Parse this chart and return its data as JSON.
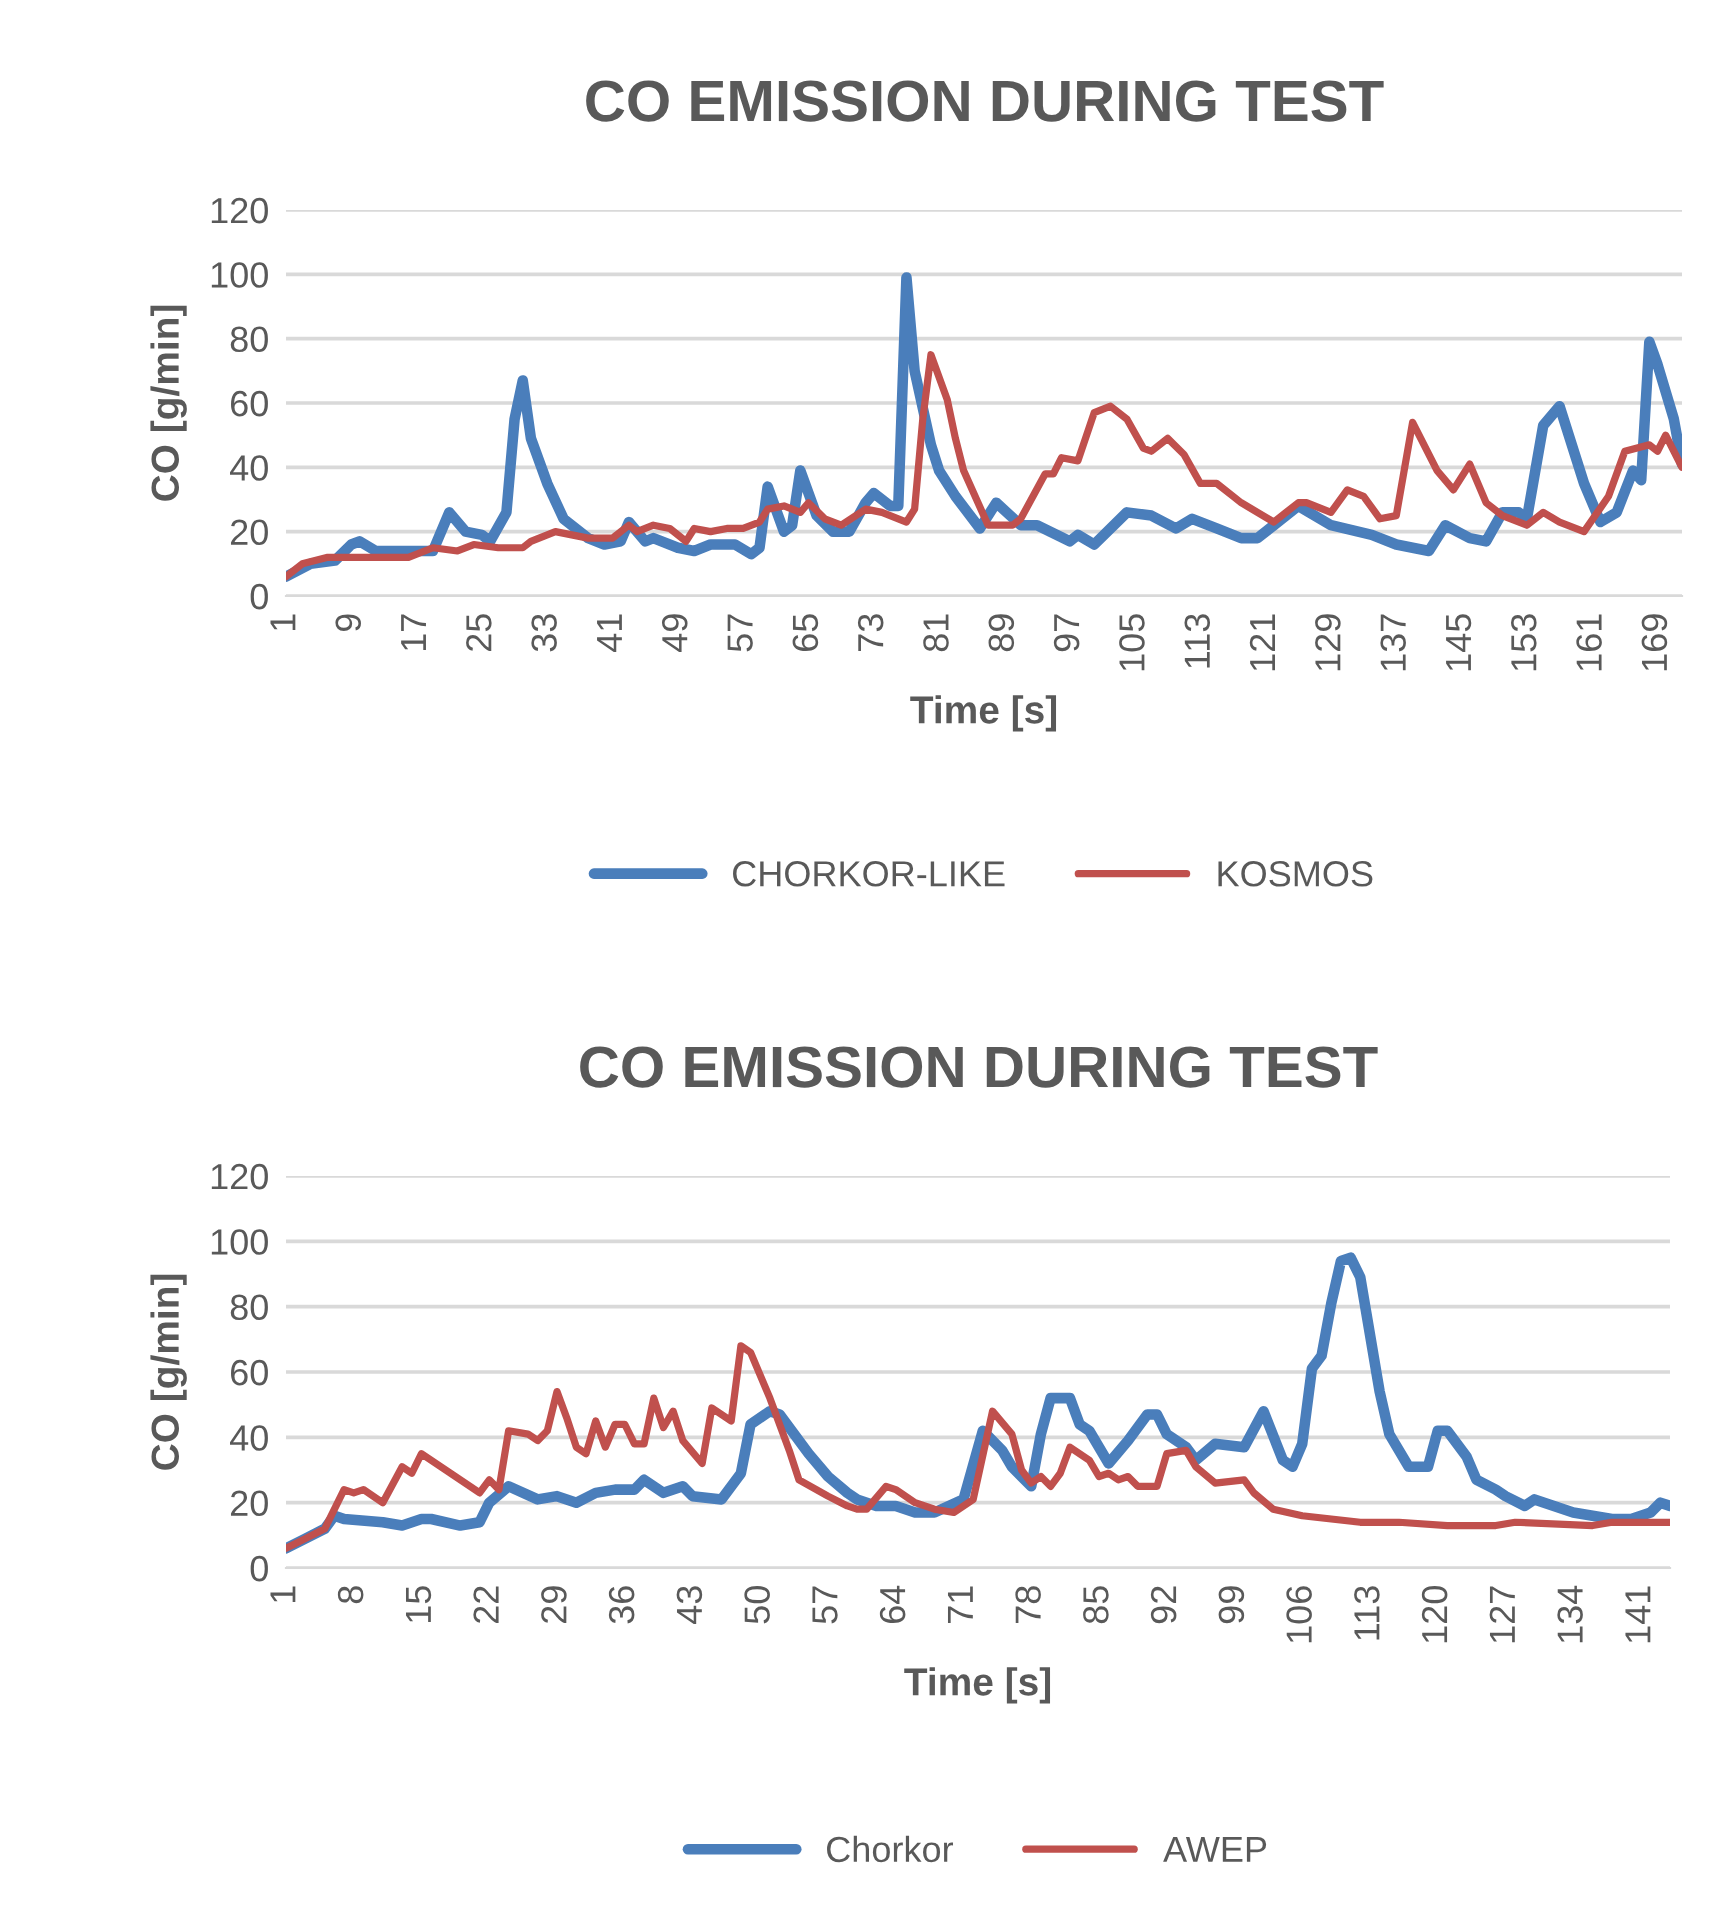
{
  "chart_data": [
    {
      "type": "line",
      "title": "CO EMISSION DURING TEST",
      "xlabel": "Time [s]",
      "ylabel": "CO [g/min]",
      "xlim": [
        1,
        172
      ],
      "xticks": [
        1,
        9,
        17,
        25,
        33,
        41,
        49,
        57,
        65,
        73,
        81,
        89,
        97,
        105,
        113,
        121,
        129,
        137,
        145,
        153,
        161,
        169
      ],
      "ylim": [
        0,
        120
      ],
      "yticks": [
        0,
        20,
        40,
        60,
        80,
        100,
        120
      ],
      "grid": "y",
      "legend": "bottom",
      "marker": "none",
      "line_style": "solid",
      "series": [
        {
          "name": "CHORKOR-LIKE",
          "color": "#4a7ebb",
          "x": [
            1,
            4,
            7,
            9,
            10,
            12,
            17,
            19,
            21,
            23,
            25,
            26,
            28,
            29,
            30,
            31,
            33,
            35,
            38,
            40,
            42,
            43,
            45,
            46,
            49,
            51,
            53,
            56,
            58,
            59,
            60,
            62,
            63,
            64,
            66,
            68,
            70,
            72,
            73,
            75,
            76,
            77,
            78,
            80,
            81,
            83,
            86,
            88,
            91,
            93,
            97,
            98,
            100,
            104,
            107,
            110,
            112,
            115,
            118,
            120,
            122,
            125,
            129,
            134,
            137,
            141,
            143,
            146,
            148,
            150,
            152,
            153,
            155,
            157,
            160,
            162,
            164,
            166,
            167,
            168,
            169,
            171,
            172
          ],
          "values": [
            6,
            10,
            11,
            16,
            17,
            14,
            14,
            14,
            26,
            20,
            19,
            17,
            26,
            55,
            67,
            49,
            35,
            24,
            18,
            16,
            17,
            23,
            17,
            18,
            15,
            14,
            16,
            16,
            13,
            15,
            34,
            20,
            22,
            39,
            25,
            20,
            20,
            29,
            32,
            28,
            28,
            99,
            70,
            47,
            39,
            31,
            21,
            29,
            22,
            22,
            17,
            19,
            16,
            26,
            25,
            21,
            24,
            21,
            18,
            18,
            22,
            28,
            22,
            19,
            16,
            14,
            22,
            18,
            17,
            26,
            26,
            24,
            53,
            59,
            35,
            23,
            26,
            39,
            36,
            79,
            72,
            55,
            41
          ]
        },
        {
          "name": "KOSMOS",
          "color": "#c0504d",
          "x": [
            1,
            3,
            6,
            9,
            13,
            16,
            19,
            22,
            24,
            27,
            30,
            31,
            34,
            38,
            41,
            43,
            44,
            46,
            48,
            50,
            51,
            53,
            55,
            57,
            59,
            60,
            62,
            64,
            65,
            67,
            69,
            72,
            74,
            77,
            78,
            79,
            80,
            82,
            83,
            84,
            87,
            90,
            91,
            94,
            95,
            96,
            98,
            100,
            102,
            104,
            106,
            107,
            109,
            111,
            113,
            115,
            117,
            118,
            122,
            125,
            126,
            129,
            131,
            133,
            135,
            137,
            139,
            142,
            144,
            146,
            148,
            150,
            153,
            155,
            157,
            160,
            163,
            165,
            168,
            169,
            170,
            172
          ],
          "values": [
            6,
            10,
            12,
            12,
            12,
            12,
            15,
            14,
            16,
            15,
            15,
            17,
            20,
            18,
            18,
            22,
            20,
            22,
            21,
            17,
            21,
            20,
            21,
            21,
            23,
            27,
            28,
            26,
            29,
            24,
            22,
            27,
            26,
            23,
            27,
            55,
            75,
            61,
            49,
            39,
            22,
            22,
            24,
            38,
            38,
            43,
            42,
            57,
            59,
            55,
            46,
            45,
            49,
            44,
            35,
            35,
            31,
            29,
            23,
            29,
            29,
            26,
            33,
            31,
            24,
            25,
            54,
            39,
            33,
            41,
            29,
            25,
            22,
            26,
            23,
            20,
            31,
            45,
            47,
            45,
            50,
            40
          ]
        }
      ]
    },
    {
      "type": "line",
      "title": "CO EMISSION DURING TEST",
      "xlabel": "Time [s]",
      "ylabel": "CO [g/min]",
      "xlim": [
        1,
        144
      ],
      "xticks": [
        1,
        8,
        15,
        22,
        29,
        36,
        43,
        50,
        57,
        64,
        71,
        78,
        85,
        92,
        99,
        106,
        113,
        120,
        127,
        134,
        141
      ],
      "ylim": [
        0,
        120
      ],
      "yticks": [
        0,
        20,
        40,
        60,
        80,
        100,
        120
      ],
      "grid": "y",
      "legend": "bottom",
      "marker": "none",
      "line_style": "solid",
      "series": [
        {
          "name": "Chorkor",
          "color": "#4a7ebb",
          "x": [
            1,
            3,
            5,
            6,
            7,
            11,
            13,
            15,
            16,
            19,
            21,
            22,
            24,
            27,
            29,
            31,
            33,
            35,
            37,
            38,
            40,
            42,
            43,
            46,
            48,
            49,
            51,
            52,
            55,
            57,
            59,
            60,
            62,
            64,
            66,
            68,
            71,
            73,
            75,
            76,
            78,
            79,
            80,
            82,
            83,
            84,
            86,
            88,
            90,
            91,
            92,
            94,
            95,
            97,
            100,
            102,
            104,
            105,
            106,
            107,
            108,
            109,
            110,
            111,
            112,
            114,
            115,
            117,
            119,
            120,
            121,
            123,
            124,
            126,
            127,
            129,
            130,
            131,
            134,
            136,
            138,
            140,
            142,
            143,
            144
          ],
          "values": [
            6,
            9,
            12,
            16,
            15,
            14,
            13,
            15,
            15,
            13,
            14,
            20,
            25,
            21,
            22,
            20,
            23,
            24,
            24,
            27,
            23,
            25,
            22,
            21,
            29,
            44,
            48,
            47,
            35,
            28,
            23,
            21,
            19,
            19,
            17,
            17,
            21,
            42,
            36,
            31,
            25,
            41,
            52,
            52,
            44,
            42,
            32,
            39,
            47,
            47,
            41,
            37,
            33,
            38,
            37,
            48,
            33,
            31,
            38,
            61,
            65,
            81,
            94,
            95,
            89,
            54,
            41,
            31,
            31,
            42,
            42,
            34,
            27,
            24,
            22,
            19,
            21,
            20,
            17,
            16,
            15,
            15,
            17,
            20,
            19
          ]
        },
        {
          "name": "AWEP",
          "color": "#c0504d",
          "x": [
            1,
            3,
            5,
            7,
            8,
            9,
            11,
            13,
            14,
            15,
            17,
            20,
            21,
            22,
            23,
            24,
            26,
            27,
            28,
            29,
            30,
            31,
            32,
            33,
            34,
            35,
            36,
            37,
            38,
            39,
            40,
            41,
            42,
            44,
            45,
            47,
            48,
            49,
            51,
            53,
            54,
            57,
            59,
            60,
            61,
            63,
            64,
            66,
            68,
            70,
            72,
            74,
            76,
            77,
            78,
            79,
            80,
            81,
            82,
            84,
            85,
            86,
            87,
            88,
            89,
            91,
            92,
            94,
            95,
            97,
            100,
            101,
            103,
            106,
            109,
            112,
            116,
            121,
            126,
            128,
            136,
            138,
            140,
            142,
            144
          ],
          "values": [
            6,
            9,
            12,
            24,
            23,
            24,
            20,
            31,
            29,
            35,
            31,
            25,
            23,
            27,
            24,
            42,
            41,
            39,
            42,
            54,
            46,
            37,
            35,
            45,
            37,
            44,
            44,
            38,
            38,
            52,
            43,
            48,
            39,
            32,
            49,
            45,
            68,
            66,
            52,
            36,
            27,
            22,
            19,
            18,
            18,
            25,
            24,
            20,
            18,
            17,
            21,
            48,
            41,
            30,
            26,
            28,
            25,
            29,
            37,
            33,
            28,
            29,
            27,
            28,
            25,
            25,
            35,
            36,
            31,
            26,
            27,
            23,
            18,
            16,
            15,
            14,
            14,
            13,
            13,
            14,
            13,
            14,
            14,
            14,
            14
          ]
        }
      ]
    }
  ]
}
